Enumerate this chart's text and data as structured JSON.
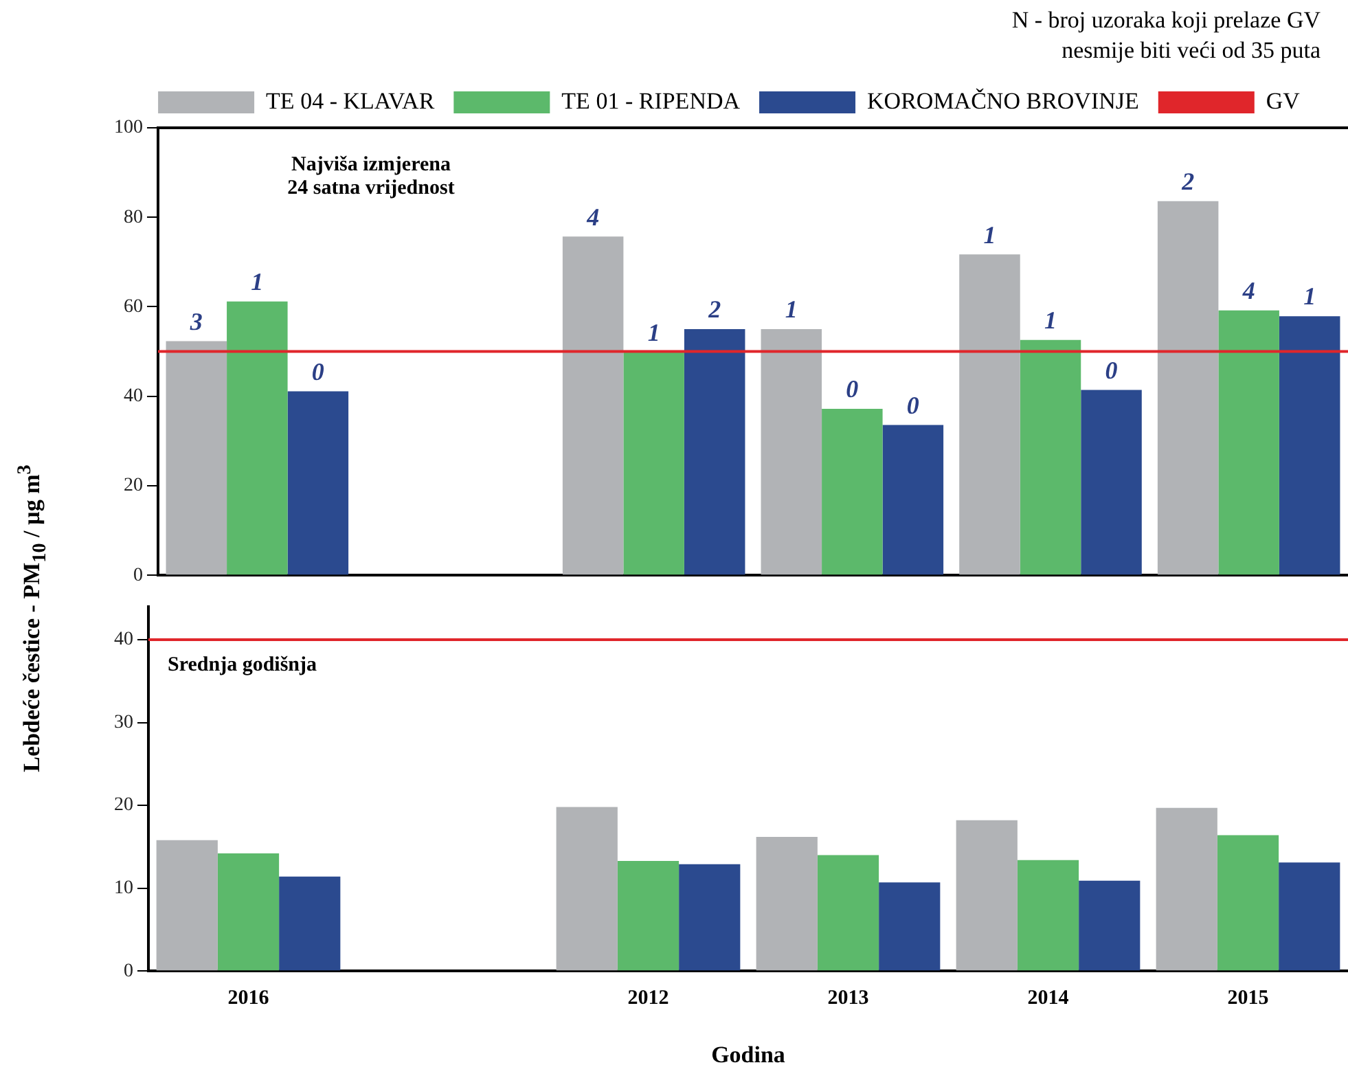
{
  "chart_data": [
    {
      "type": "bar",
      "categories": [
        "2016",
        null,
        "2012",
        "2013",
        "2014",
        "2015"
      ],
      "ylabel": "Lebdeće čestice - PM$_{10}$ / µg m$^{3}$",
      "series": [
        {
          "name": "TE 04 - KLAVAR",
          "color": "#b1b3b6",
          "values": [
            52.3,
            null,
            75.7,
            55,
            71.7,
            83.6
          ]
        },
        {
          "name": "TE 01 - RIPENDA",
          "color": "#5cb96b",
          "values": [
            61.2,
            null,
            49.8,
            37.2,
            52.6,
            59.2
          ]
        },
        {
          "name": "KOROMAČNO BROVINJE",
          "color": "#2b4a8f",
          "values": [
            41.1,
            null,
            55,
            33.6,
            41.4,
            57.9
          ]
        }
      ],
      "ylim": [
        0,
        100
      ],
      "yticks": [
        0,
        20,
        40,
        60,
        80,
        100
      ],
      "ref_lines": [
        {
          "axis": "y",
          "value": 50,
          "label": "GV",
          "color": "#e0262b"
        }
      ],
      "annotations": [
        "Najviša izmjerena\n24 satna vrijednost",
        "N - broj uzoraka koji prelaze GV\nnesmije biti veći od 35 puta",
        "3",
        "1",
        "0",
        "4",
        "1",
        "2",
        "1",
        "0",
        "0",
        "1",
        "1",
        "0",
        "2",
        "4",
        "1"
      ],
      "legend": "top",
      "tick_labels": "y",
      "grid": false
    },
    {
      "type": "bar",
      "categories": [
        "2016",
        null,
        "2012",
        "2013",
        "2014",
        "2015"
      ],
      "xlabel": "Godina",
      "series": [
        {
          "color": "#b1b3b6",
          "values": [
            15.8,
            null,
            19.8,
            16.2,
            18.2,
            19.7
          ]
        },
        {
          "color": "#5cb96b",
          "values": [
            14.2,
            null,
            13.3,
            14.0,
            13.4,
            16.4
          ]
        },
        {
          "color": "#2b4a8f",
          "values": [
            11.4,
            null,
            12.9,
            10.7,
            10.9,
            13.1
          ]
        }
      ],
      "ylim": [
        0,
        44
      ],
      "yticks": [
        0,
        10,
        20,
        30,
        40
      ],
      "ref_lines": [
        {
          "axis": "y",
          "value": 40,
          "color": "#e0262b"
        }
      ],
      "annotations": [
        "Srednja godišnja"
      ],
      "grid": false
    }
  ]
}
